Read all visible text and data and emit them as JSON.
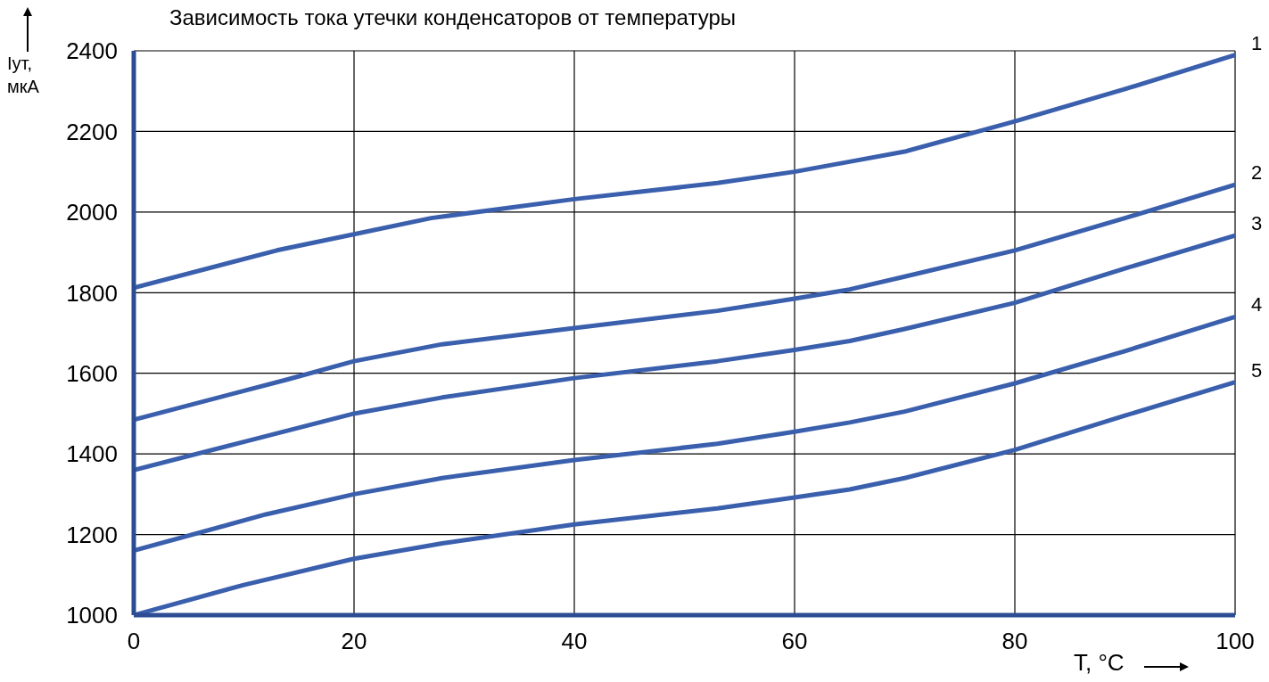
{
  "chart_data": {
    "type": "line",
    "title": "Зависимость тока утечки конденсаторов от температуры",
    "xlabel": "T, °C",
    "ylabel": "Iут, мкА",
    "xlim": [
      0,
      100
    ],
    "xticks": [
      0,
      20,
      40,
      60,
      80,
      100
    ],
    "ylim": [
      1000,
      2400
    ],
    "yticks": [
      1000,
      1200,
      1400,
      1600,
      1800,
      2000,
      2200,
      2400
    ],
    "grid": true,
    "series": [
      {
        "name": "1",
        "color": "#3a5fad",
        "x": [
          0,
          13,
          20,
          27,
          40,
          53,
          60,
          65,
          70,
          80,
          90,
          100
        ],
        "values": [
          1812,
          1905,
          1945,
          1985,
          2032,
          2072,
          2100,
          2125,
          2150,
          2225,
          2305,
          2390
        ]
      },
      {
        "name": "2",
        "color": "#3a5fad",
        "x": [
          0,
          14,
          20,
          28,
          40,
          53,
          60,
          65,
          70,
          80,
          90,
          100
        ],
        "values": [
          1485,
          1585,
          1630,
          1672,
          1712,
          1755,
          1785,
          1808,
          1840,
          1905,
          1985,
          2068
        ]
      },
      {
        "name": "3",
        "color": "#3a5fad",
        "x": [
          0,
          10,
          20,
          28,
          40,
          53,
          60,
          65,
          70,
          80,
          90,
          100
        ],
        "values": [
          1360,
          1430,
          1500,
          1540,
          1588,
          1630,
          1658,
          1680,
          1710,
          1775,
          1860,
          1942
        ]
      },
      {
        "name": "4",
        "color": "#3a5fad",
        "x": [
          0,
          12,
          20,
          28,
          40,
          53,
          60,
          65,
          70,
          80,
          90,
          100
        ],
        "values": [
          1160,
          1250,
          1300,
          1340,
          1385,
          1425,
          1455,
          1478,
          1505,
          1575,
          1655,
          1740
        ]
      },
      {
        "name": "5",
        "color": "#3a5fad",
        "x": [
          0,
          10,
          20,
          28,
          40,
          53,
          60,
          65,
          70,
          80,
          90,
          100
        ],
        "values": [
          1000,
          1075,
          1140,
          1178,
          1225,
          1265,
          1292,
          1312,
          1340,
          1410,
          1495,
          1578
        ]
      }
    ]
  }
}
